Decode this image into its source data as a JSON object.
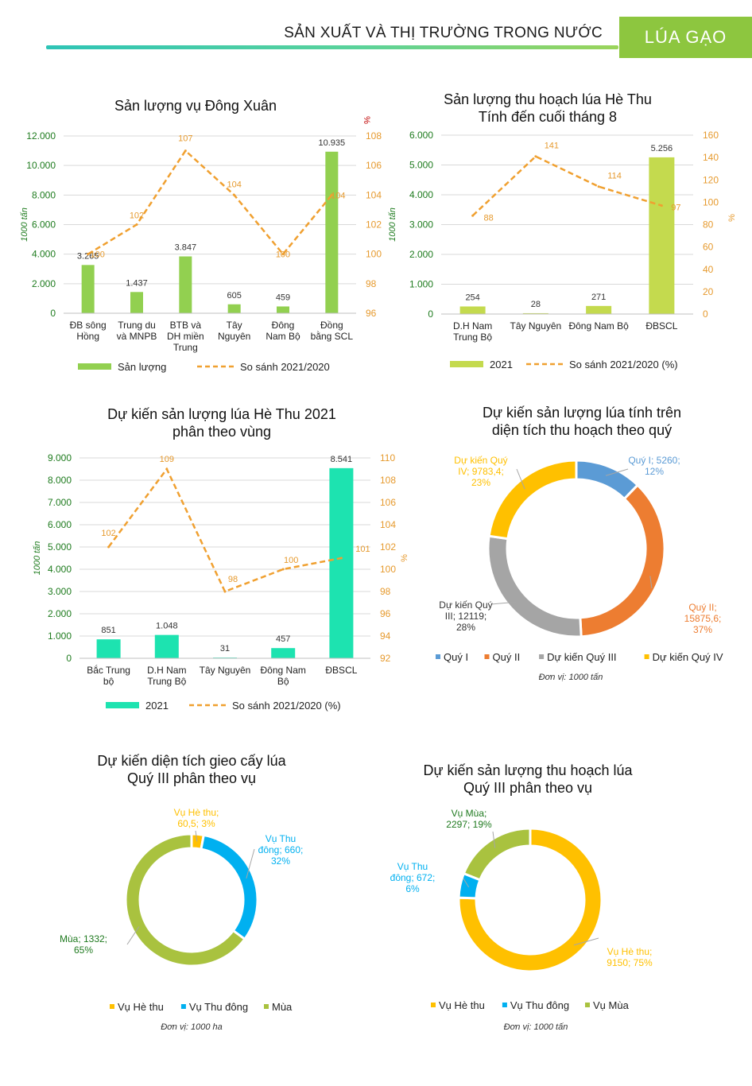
{
  "header": {
    "title": "SẢN XUẤT VÀ THỊ TRƯỜNG TRONG NƯỚC",
    "badge": "LÚA GẠO"
  },
  "colors": {
    "green": "#92d050",
    "lime": "#c4da4e",
    "teal": "#1de3b0",
    "orange": "#f0a030",
    "blue": "#5b9bd5",
    "orange2": "#ed7d31",
    "gray": "#a5a5a5",
    "gold": "#ffc000",
    "cyan": "#00b0f0",
    "olive": "#a9c23f",
    "axis_green": "#1e7b1e",
    "axis_orange": "#e69a2e"
  },
  "charts": [
    {
      "id": "dong-xuan",
      "title_lines": [
        "Sản lượng vụ Đông Xuân"
      ],
      "unit_left": "1000 tấn",
      "unit_right": "%",
      "left_ticks": [
        "12.000",
        "10.000",
        "8.000",
        "6.000",
        "4.000",
        "2.000",
        "0"
      ],
      "right_ticks": [
        "108",
        "106",
        "104",
        "102",
        "100",
        "98",
        "96"
      ],
      "categories": [
        [
          "ĐB sông",
          "Hồng"
        ],
        [
          "Trung du",
          "và MNPB"
        ],
        [
          "BTB và",
          "DH miền",
          "Trung"
        ],
        [
          "Tây",
          "Nguyên"
        ],
        [
          "Đông",
          "Nam Bộ"
        ],
        [
          "Đồng",
          "bằng SCL"
        ]
      ],
      "bar_labels": [
        "3.265",
        "1.437",
        "3.847",
        "605",
        "459",
        "10.935"
      ],
      "line_labels": [
        "100",
        "102",
        "107",
        "104",
        "100",
        "104"
      ],
      "legend_bar": "Sản lượng",
      "legend_line": "So sánh 2021/2020"
    },
    {
      "id": "he-thu-harvest",
      "title_lines": [
        "Sản lượng thu hoạch lúa Hè Thu",
        "Tính đến cuối tháng 8"
      ],
      "unit_left": "1000 tấn",
      "unit_right": "%",
      "left_ticks": [
        "6.000",
        "5.000",
        "4.000",
        "3.000",
        "2.000",
        "1.000",
        "0"
      ],
      "right_ticks": [
        "160",
        "140",
        "120",
        "100",
        "80",
        "60",
        "40",
        "20",
        "0"
      ],
      "categories": [
        [
          "D.H Nam",
          "Trung Bộ"
        ],
        [
          "Tây Nguyên"
        ],
        [
          "Đông Nam Bộ"
        ],
        [
          "ĐBSCL"
        ]
      ],
      "bar_labels": [
        "254",
        "28",
        "271",
        "5.256"
      ],
      "line_labels": [
        "88",
        "141",
        "114",
        "97"
      ],
      "legend_bar": "2021",
      "legend_line": "So sánh 2021/2020 (%)"
    },
    {
      "id": "he-thu-forecast",
      "title_lines": [
        "Dự kiến sản lượng lúa Hè Thu 2021",
        "phân theo vùng"
      ],
      "unit_left": "1000 tấn",
      "unit_right": "%",
      "left_ticks": [
        "9.000",
        "8.000",
        "7.000",
        "6.000",
        "5.000",
        "4.000",
        "3.000",
        "2.000",
        "1.000",
        "0"
      ],
      "right_ticks": [
        "110",
        "108",
        "106",
        "104",
        "102",
        "100",
        "98",
        "96",
        "94",
        "92"
      ],
      "categories": [
        [
          "Bắc Trung",
          "bộ"
        ],
        [
          "D.H Nam",
          "Trung Bộ"
        ],
        [
          "Tây Nguyên"
        ],
        [
          "Đông Nam",
          "Bộ"
        ],
        [
          "ĐBSCL"
        ]
      ],
      "bar_labels": [
        "851",
        "1.048",
        "31",
        "457",
        "8.541"
      ],
      "line_labels": [
        "102",
        "109",
        "98",
        "100",
        "101"
      ],
      "legend_bar": "2021",
      "legend_line": "So sánh 2021/2020 (%)"
    },
    {
      "id": "quarterly-output",
      "title_lines": [
        "Dự kiến sản lượng lúa tính trên",
        "diện tích thu hoạch theo quý"
      ],
      "slice_labels": [
        [
          "Quý I; 5260;",
          "12%"
        ],
        [
          "Quý II;",
          "15875,6;",
          "37%"
        ],
        [
          "Dự kiến Quý",
          "III; 12119;",
          "28%"
        ],
        [
          "Dự kiến Quý",
          "IV; 9783,4;",
          "23%"
        ]
      ],
      "legend": [
        "Quý I",
        "Quý II",
        "Dự kiến Quý III",
        "Dự kiến Quý IV"
      ],
      "unit": "Đơn vị: 1000 tấn"
    },
    {
      "id": "q3-area",
      "title_lines": [
        "Dự kiến diện tích gieo cấy lúa",
        "Quý III phân theo vụ"
      ],
      "slice_labels": [
        [
          "Vụ Hè thu;",
          "60,5; 3%"
        ],
        [
          "Vụ Thu",
          "đông; 660;",
          "32%"
        ],
        [
          "Mùa; 1332;",
          "65%"
        ]
      ],
      "legend": [
        "Vụ Hè thu",
        "Vụ Thu đông",
        "Mùa"
      ],
      "unit": "Đơn vị: 1000 ha"
    },
    {
      "id": "q3-output",
      "title_lines": [
        "Dự kiến sản lượng thu hoạch lúa",
        "Quý III phân theo vụ"
      ],
      "slice_labels": [
        [
          "Vụ Hè thu;",
          "9150; 75%"
        ],
        [
          "Vụ Thu",
          "đông; 672;",
          "6%"
        ],
        [
          "Vụ Mùa;",
          "2297; 19%"
        ]
      ],
      "legend": [
        "Vụ Hè thu",
        "Vụ Thu đông",
        "Vụ Mùa"
      ],
      "unit": "Đơn vị: 1000 tấn"
    }
  ],
  "chart_data": [
    {
      "type": "bar",
      "title": "Sản lượng vụ Đông Xuân",
      "categories": [
        "ĐB sông Hồng",
        "Trung du và MNPB",
        "BTB và DH miền Trung",
        "Tây Nguyên",
        "Đông Nam Bộ",
        "Đồng bằng SCL"
      ],
      "series": [
        {
          "name": "Sản lượng",
          "axis": "left",
          "values": [
            3265,
            1437,
            3847,
            605,
            459,
            10935
          ]
        },
        {
          "name": "So sánh 2021/2020",
          "axis": "right",
          "type": "line",
          "values": [
            100,
            102,
            107,
            104,
            100,
            104
          ]
        }
      ],
      "ylabel": "1000 tấn",
      "y2label": "%",
      "ylim": [
        0,
        12000
      ],
      "y2lim": [
        96,
        108
      ]
    },
    {
      "type": "bar",
      "title": "Sản lượng thu hoạch lúa Hè Thu - Tính đến cuối tháng 8",
      "categories": [
        "D.H Nam Trung Bộ",
        "Tây Nguyên",
        "Đông Nam Bộ",
        "ĐBSCL"
      ],
      "series": [
        {
          "name": "2021",
          "axis": "left",
          "values": [
            254,
            28,
            271,
            5256
          ]
        },
        {
          "name": "So sánh 2021/2020 (%)",
          "axis": "right",
          "type": "line",
          "values": [
            88,
            141,
            114,
            97
          ]
        }
      ],
      "ylabel": "1000 tấn",
      "y2label": "%",
      "ylim": [
        0,
        6000
      ],
      "y2lim": [
        0,
        160
      ]
    },
    {
      "type": "bar",
      "title": "Dự kiến sản lượng lúa Hè Thu 2021 phân theo vùng",
      "categories": [
        "Bắc Trung bộ",
        "D.H Nam Trung Bộ",
        "Tây Nguyên",
        "Đông Nam Bộ",
        "ĐBSCL"
      ],
      "series": [
        {
          "name": "2021",
          "axis": "left",
          "values": [
            851,
            1048,
            31,
            457,
            8541
          ]
        },
        {
          "name": "So sánh 2021/2020 (%)",
          "axis": "right",
          "type": "line",
          "values": [
            102,
            109,
            98,
            100,
            101
          ]
        }
      ],
      "ylabel": "1000 tấn",
      "y2label": "%",
      "ylim": [
        0,
        9000
      ],
      "y2lim": [
        92,
        110
      ]
    },
    {
      "type": "pie",
      "title": "Dự kiến sản lượng lúa tính trên diện tích thu hoạch theo quý",
      "categories": [
        "Quý I",
        "Quý II",
        "Dự kiến Quý III",
        "Dự kiến Quý IV"
      ],
      "values": [
        5260,
        15875.6,
        12119,
        9783.4
      ],
      "percent": [
        12,
        37,
        28,
        23
      ]
    },
    {
      "type": "pie",
      "title": "Dự kiến diện tích gieo cấy lúa Quý III phân theo vụ",
      "categories": [
        "Vụ Hè thu",
        "Vụ Thu đông",
        "Mùa"
      ],
      "values": [
        60.5,
        660,
        1332
      ],
      "percent": [
        3,
        32,
        65
      ]
    },
    {
      "type": "pie",
      "title": "Dự kiến sản lượng thu hoạch lúa Quý III phân theo vụ",
      "categories": [
        "Vụ Hè thu",
        "Vụ Thu đông",
        "Vụ Mùa"
      ],
      "values": [
        9150,
        672,
        2297
      ],
      "percent": [
        75,
        6,
        19
      ]
    }
  ]
}
